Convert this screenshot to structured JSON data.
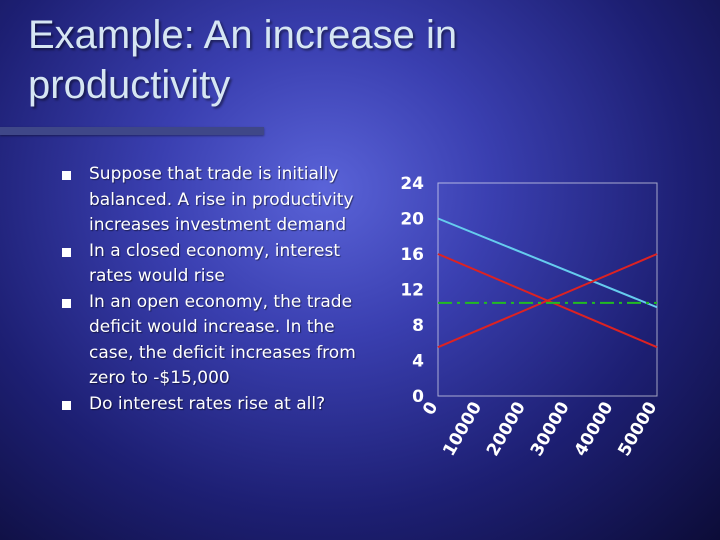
{
  "slide": {
    "title_line1": "Example: An increase in",
    "title_line2": "productivity",
    "bullets": [
      "Suppose that trade is initially balanced. A rise in productivity increases investment demand",
      "In a closed economy, interest rates would rise",
      "In an open economy, the trade deficit would increase. In the case, the deficit increases from zero to -$15,000",
      "Do interest rates rise at all?"
    ],
    "bullet_marker": "n"
  },
  "chart_data": {
    "type": "line",
    "x_categories": [
      "0",
      "10000",
      "20000",
      "30000",
      "40000",
      "50000"
    ],
    "y_ticks": [
      "0",
      "4",
      "8",
      "12",
      "16",
      "20",
      "24"
    ],
    "ylim": [
      0,
      24
    ],
    "xlim": [
      0,
      50000
    ],
    "series": [
      {
        "color": "#66ccee",
        "style": "solid",
        "x": [
          0,
          50000
        ],
        "y": [
          20,
          10
        ]
      },
      {
        "color": "#dd2222",
        "style": "solid",
        "x": [
          0,
          50000
        ],
        "y": [
          16,
          5.5
        ]
      },
      {
        "color": "#dd2222",
        "style": "solid",
        "x": [
          0,
          50000
        ],
        "y": [
          5.5,
          16
        ]
      },
      {
        "color": "#22bb22",
        "style": "dash-dot",
        "x": [
          0,
          50000
        ],
        "y": [
          10.5,
          10.5
        ]
      }
    ],
    "grid": false,
    "legend": "none"
  }
}
